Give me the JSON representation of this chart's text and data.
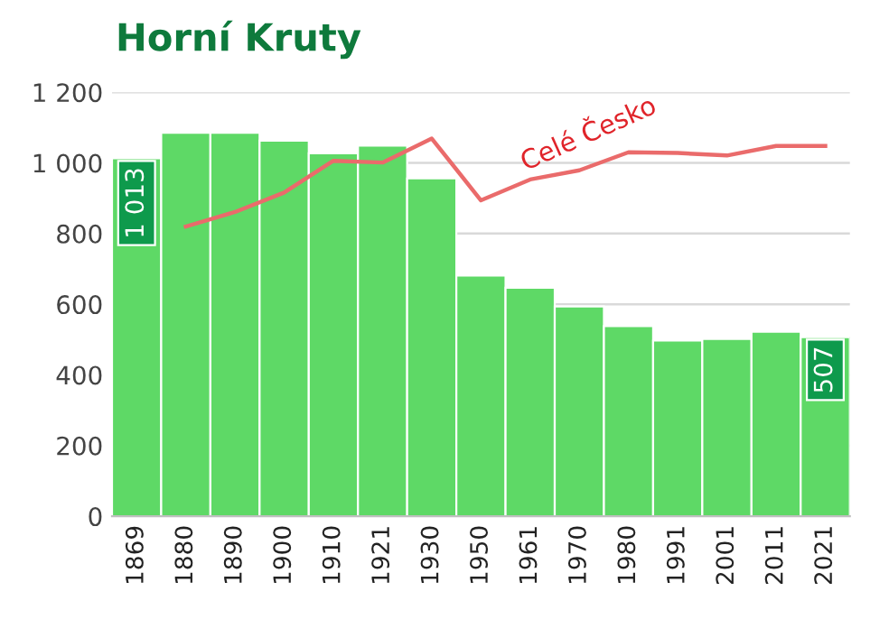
{
  "chart_data": {
    "type": "bar",
    "title": "Horní Kruty",
    "categories": [
      "1869",
      "1880",
      "1890",
      "1900",
      "1910",
      "1921",
      "1930",
      "1950",
      "1961",
      "1970",
      "1980",
      "1991",
      "2001",
      "2011",
      "2021"
    ],
    "series": [
      {
        "color": "#5ed966",
        "values": [
          1013,
          1085,
          1085,
          1063,
          1027,
          1049,
          956,
          681,
          647,
          594,
          538,
          497,
          502,
          522,
          507
        ],
        "value_labels": [
          "1 013",
          null,
          null,
          null,
          null,
          null,
          null,
          null,
          null,
          null,
          null,
          null,
          null,
          null,
          "507"
        ]
      },
      {
        "type": "line",
        "name": "Celé Česko",
        "color": "#ea6b6b",
        "values": [
          null,
          820,
          861,
          916,
          1006,
          1001,
          1069,
          894,
          953,
          979,
          1030,
          1028,
          1021,
          1048,
          1048
        ]
      }
    ],
    "ylim": [
      0,
      1200
    ],
    "yticks": [
      0,
      200,
      400,
      600,
      800,
      {
        "value": 1000,
        "label": "1 000"
      },
      {
        "value": 1200,
        "label": "1 200"
      }
    ],
    "grid": "y",
    "legend": false
  }
}
